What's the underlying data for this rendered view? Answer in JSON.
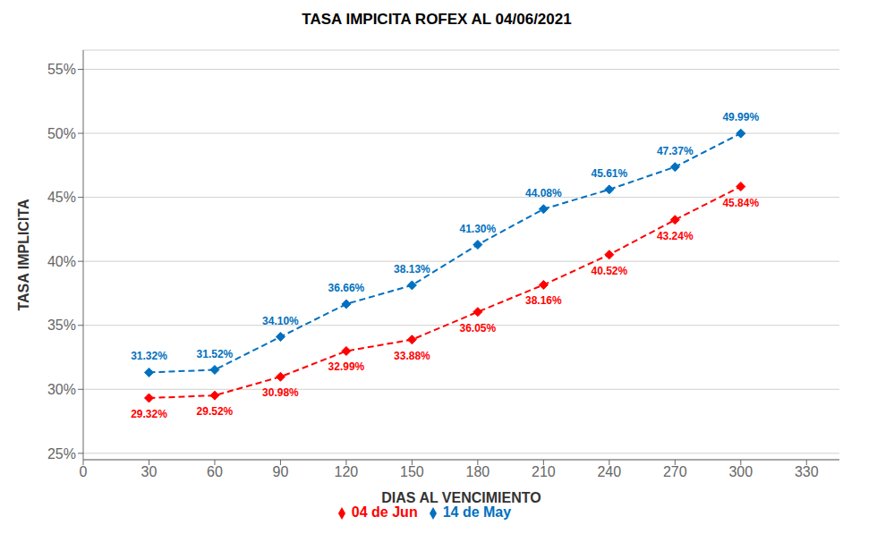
{
  "chart_data": {
    "type": "line",
    "title": "TASA IMPICITA ROFEX AL 04/06/2021",
    "x_label": "DIAS AL VENCIMIENTO",
    "y_label": "TASA IMPLICITA",
    "x": [
      30,
      60,
      90,
      120,
      150,
      180,
      210,
      240,
      270,
      300
    ],
    "series": [
      {
        "name": "04 de Jun",
        "color": "#FF0000",
        "marker": "diamond",
        "line_style": "dashed",
        "values": [
          0.2932,
          0.2952,
          0.3098,
          0.3299,
          0.3388,
          0.3605,
          0.3816,
          0.4052,
          0.4324,
          0.4584
        ],
        "value_labels": [
          "29.32%",
          "29.52%",
          "30.98%",
          "32.99%",
          "33.88%",
          "36.05%",
          "38.16%",
          "40.52%",
          "43.24%",
          "45.84%"
        ]
      },
      {
        "name": "14 de May",
        "color": "#0070C0",
        "marker": "diamond",
        "line_style": "dashed",
        "values": [
          0.3132,
          0.3152,
          0.341,
          0.3666,
          0.3813,
          0.413,
          0.4408,
          0.4561,
          0.4737,
          0.4999
        ],
        "value_labels": [
          "31.32%",
          "31.52%",
          "34.10%",
          "36.66%",
          "38.13%",
          "41.30%",
          "44.08%",
          "45.61%",
          "47.37%",
          "49.99%"
        ]
      }
    ],
    "xlim": [
      0,
      345
    ],
    "xticks": [
      0,
      30,
      60,
      90,
      120,
      150,
      180,
      210,
      240,
      270,
      300,
      330
    ],
    "ylim": [
      0.245,
      0.565
    ],
    "yticks": [
      {
        "value": 0.25,
        "label": "25%"
      },
      {
        "value": 0.3,
        "label": "30%"
      },
      {
        "value": 0.35,
        "label": "35%"
      },
      {
        "value": 0.4,
        "label": "40%"
      },
      {
        "value": 0.45,
        "label": "45%"
      },
      {
        "value": 0.5,
        "label": "50%"
      },
      {
        "value": 0.55,
        "label": "55%"
      }
    ],
    "grid": true,
    "legend": "bottom",
    "data_labels": true
  }
}
